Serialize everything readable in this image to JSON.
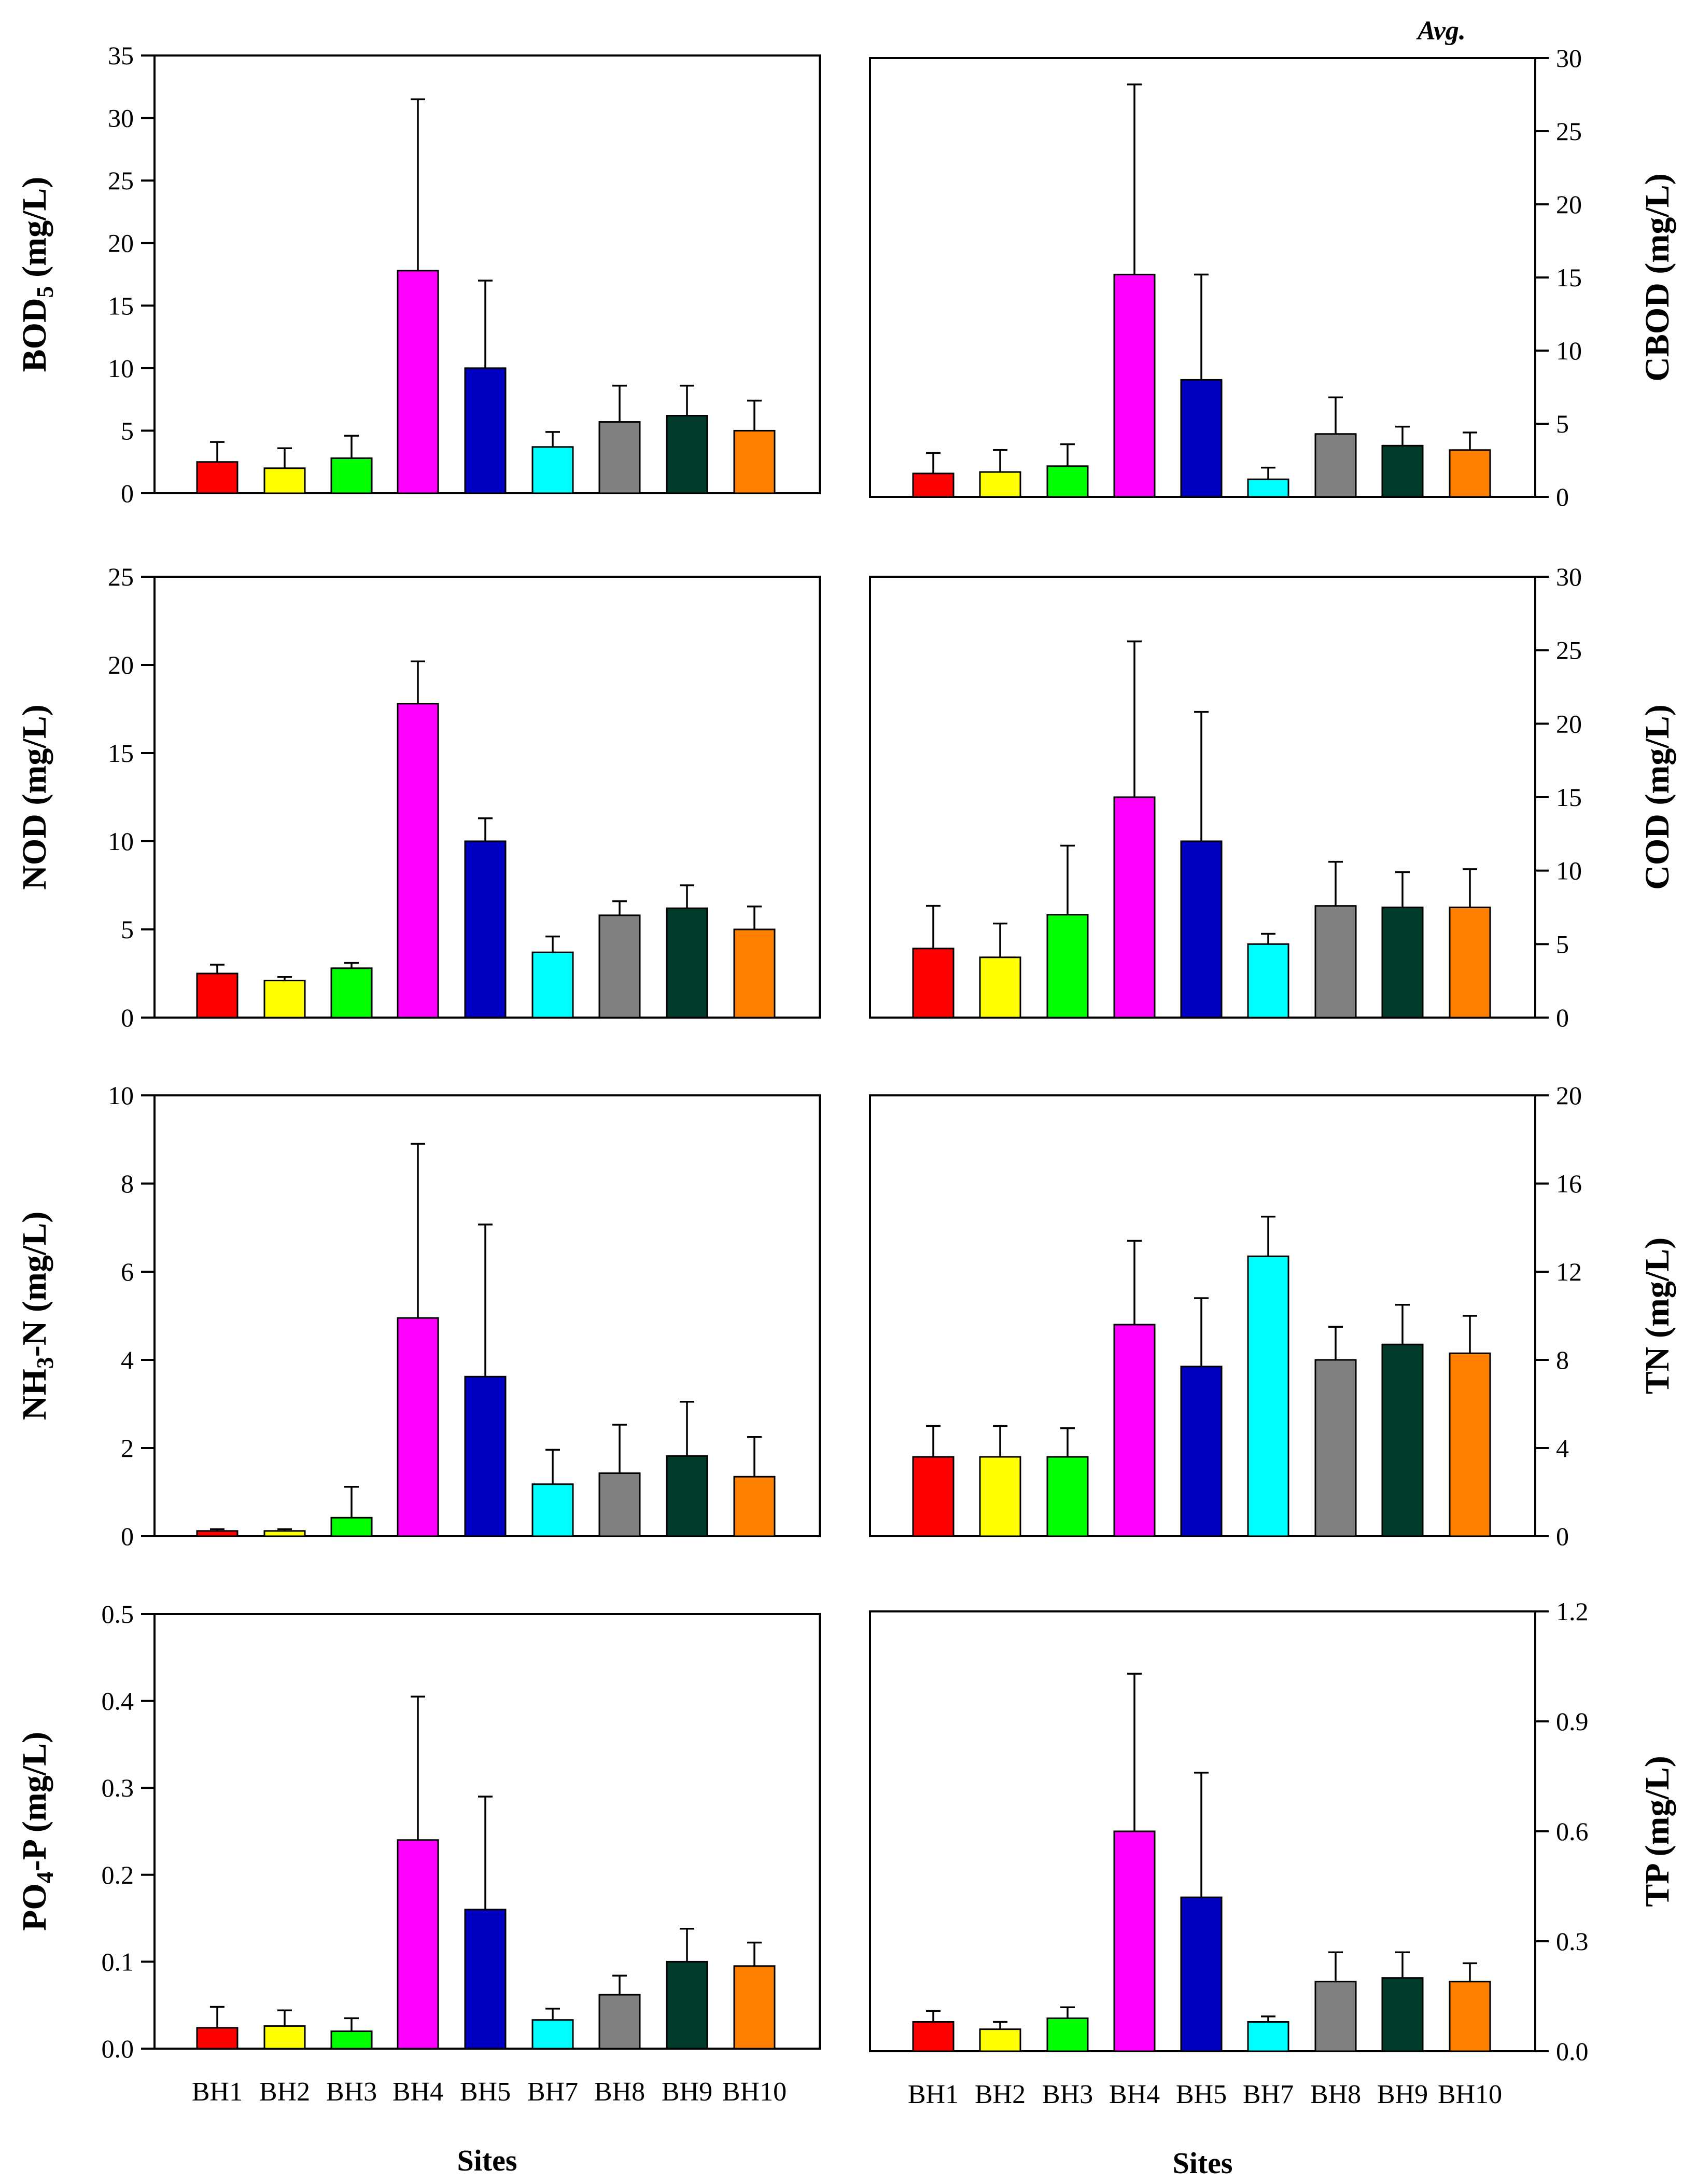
{
  "corner_note": "Avg.",
  "colors": {
    "BH1": "#ff0000",
    "BH2": "#ffff00",
    "BH3": "#00ff00",
    "BH4": "#ff00ff",
    "BH5": "#0000c0",
    "BH7": "#00ffff",
    "BH8": "#808080",
    "BH9": "#003a2a",
    "BH10": "#ff8000"
  },
  "chart_data": [
    {
      "type": "bar",
      "id": "bod5",
      "ylabel": "BOD5 (mg/L)",
      "ylabel_main": "BOD",
      "ylabel_sub": "5",
      "ylabel_rest": " (mg/L)",
      "xlabel": "",
      "categories": [
        "BH1",
        "BH2",
        "BH3",
        "BH4",
        "BH5",
        "BH7",
        "BH8",
        "BH9",
        "BH10"
      ],
      "values": [
        2.5,
        2.0,
        2.8,
        17.8,
        10.0,
        3.7,
        5.7,
        6.2,
        5.0
      ],
      "errors": [
        1.6,
        1.6,
        1.8,
        13.7,
        7.0,
        1.2,
        2.9,
        2.4,
        2.4
      ],
      "ylim": [
        0,
        35
      ],
      "yticks": [
        0,
        5,
        10,
        15,
        20,
        25,
        30,
        35
      ],
      "ytick_labels": [
        "0",
        "5",
        "10",
        "15",
        "20",
        "25",
        "30",
        "35"
      ]
    },
    {
      "type": "bar",
      "id": "cbod",
      "ylabel": "CBOD (mg/L)",
      "xlabel": "",
      "categories": [
        "BH1",
        "BH2",
        "BH3",
        "BH4",
        "BH5",
        "BH7",
        "BH8",
        "BH9",
        "BH10"
      ],
      "values": [
        1.6,
        1.7,
        2.1,
        15.2,
        8.0,
        1.2,
        4.3,
        3.5,
        3.2
      ],
      "errors": [
        1.4,
        1.5,
        1.5,
        13.0,
        7.2,
        0.8,
        2.5,
        1.3,
        1.2
      ],
      "ylim": [
        0,
        30
      ],
      "yticks": [
        0,
        5,
        10,
        15,
        20,
        25,
        30
      ],
      "ytick_labels": [
        "0",
        "5",
        "10",
        "15",
        "20",
        "25",
        "30"
      ]
    },
    {
      "type": "bar",
      "id": "nod",
      "ylabel": "NOD (mg/L)",
      "xlabel": "",
      "categories": [
        "BH1",
        "BH2",
        "BH3",
        "BH4",
        "BH5",
        "BH7",
        "BH8",
        "BH9",
        "BH10"
      ],
      "values": [
        2.5,
        2.1,
        2.8,
        17.8,
        10.0,
        3.7,
        5.8,
        6.2,
        5.0
      ],
      "errors": [
        0.5,
        0.2,
        0.3,
        2.4,
        1.3,
        0.9,
        0.8,
        1.3,
        1.3
      ],
      "ylim": [
        0,
        25
      ],
      "yticks": [
        0,
        5,
        10,
        15,
        20,
        25
      ],
      "ytick_labels": [
        "0",
        "5",
        "10",
        "15",
        "20",
        "25"
      ]
    },
    {
      "type": "bar",
      "id": "cod",
      "ylabel": "COD (mg/L)",
      "xlabel": "",
      "categories": [
        "BH1",
        "BH2",
        "BH3",
        "BH4",
        "BH5",
        "BH7",
        "BH8",
        "BH9",
        "BH10"
      ],
      "values": [
        4.7,
        4.1,
        7.0,
        15.0,
        12.0,
        5.0,
        7.6,
        7.5,
        7.5
      ],
      "errors": [
        2.9,
        2.3,
        4.7,
        10.6,
        8.8,
        0.7,
        3.0,
        2.4,
        2.6
      ],
      "ylim": [
        0,
        30
      ],
      "yticks": [
        0,
        5,
        10,
        15,
        20,
        25,
        30
      ],
      "ytick_labels": [
        "0",
        "5",
        "10",
        "15",
        "20",
        "25",
        "30"
      ]
    },
    {
      "type": "bar",
      "id": "nh3n",
      "ylabel": "NH3-N (mg/L)",
      "ylabel_main": "NH",
      "ylabel_sub": "3",
      "ylabel_rest": "-N (mg/L)",
      "xlabel": "",
      "categories": [
        "BH1",
        "BH2",
        "BH3",
        "BH4",
        "BH5",
        "BH7",
        "BH8",
        "BH9",
        "BH10"
      ],
      "values": [
        0.12,
        0.12,
        0.42,
        4.95,
        3.62,
        1.18,
        1.43,
        1.82,
        1.35
      ],
      "errors": [
        0.04,
        0.04,
        0.7,
        3.95,
        3.45,
        0.78,
        1.1,
        1.23,
        0.9
      ],
      "ylim": [
        0,
        10
      ],
      "yticks": [
        0,
        2,
        4,
        6,
        8,
        10
      ],
      "ytick_labels": [
        "0",
        "2",
        "4",
        "6",
        "8",
        "10"
      ]
    },
    {
      "type": "bar",
      "id": "tn",
      "ylabel": "TN (mg/L)",
      "xlabel": "",
      "categories": [
        "BH1",
        "BH2",
        "BH3",
        "BH4",
        "BH5",
        "BH7",
        "BH8",
        "BH9",
        "BH10"
      ],
      "values": [
        3.6,
        3.6,
        3.6,
        9.6,
        7.7,
        12.7,
        8.0,
        8.7,
        8.3
      ],
      "errors": [
        1.4,
        1.4,
        1.3,
        3.8,
        3.1,
        1.8,
        1.5,
        1.8,
        1.7
      ],
      "ylim": [
        0,
        20
      ],
      "yticks": [
        0,
        4,
        8,
        12,
        16,
        20
      ],
      "ytick_labels": [
        "0",
        "4",
        "8",
        "12",
        "16",
        "20"
      ]
    },
    {
      "type": "bar",
      "id": "po4p",
      "ylabel": "PO4-P (mg/L)",
      "ylabel_main": "PO",
      "ylabel_sub": "4",
      "ylabel_rest": "-P (mg/L)",
      "xlabel": "Sites",
      "categories": [
        "BH1",
        "BH2",
        "BH3",
        "BH4",
        "BH5",
        "BH7",
        "BH8",
        "BH9",
        "BH10"
      ],
      "values": [
        0.024,
        0.026,
        0.02,
        0.24,
        0.16,
        0.033,
        0.062,
        0.1,
        0.095
      ],
      "errors": [
        0.024,
        0.018,
        0.015,
        0.165,
        0.13,
        0.013,
        0.022,
        0.038,
        0.027
      ],
      "ylim": [
        0,
        0.5
      ],
      "yticks": [
        0,
        0.1,
        0.2,
        0.3,
        0.4,
        0.5
      ],
      "ytick_labels": [
        "0.0",
        "0.1",
        "0.2",
        "0.3",
        "0.4",
        "0.5"
      ]
    },
    {
      "type": "bar",
      "id": "tp",
      "ylabel": "TP (mg/L)",
      "xlabel": "Sites",
      "categories": [
        "BH1",
        "BH2",
        "BH3",
        "BH4",
        "BH5",
        "BH7",
        "BH8",
        "BH9",
        "BH10"
      ],
      "values": [
        0.08,
        0.06,
        0.09,
        0.6,
        0.42,
        0.08,
        0.19,
        0.2,
        0.19
      ],
      "errors": [
        0.03,
        0.02,
        0.03,
        0.43,
        0.34,
        0.015,
        0.08,
        0.07,
        0.05
      ],
      "ylim": [
        0,
        1.2
      ],
      "yticks": [
        0,
        0.3,
        0.6,
        0.9,
        1.2
      ],
      "ytick_labels": [
        "0.0",
        "0.3",
        "0.6",
        "0.9",
        "1.2"
      ]
    }
  ]
}
